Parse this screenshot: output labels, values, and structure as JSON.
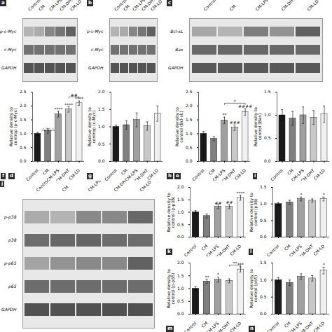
{
  "chart_data": [
    {
      "type": "heatmap",
      "panel": "a",
      "rows": [
        "p-c-Myc",
        "c-Myc",
        "GAPDH"
      ],
      "categories": [
        "Control",
        "CM",
        "CM-LPS",
        "CM-DHT",
        "CM-LD"
      ],
      "values": [
        [
          0.22,
          0.28,
          0.5,
          0.6,
          0.72
        ],
        [
          0.62,
          0.62,
          0.62,
          0.62,
          0.62
        ],
        [
          0.8,
          0.8,
          0.8,
          0.8,
          0.8
        ]
      ],
      "zlim": [
        0,
        1
      ]
    },
    {
      "type": "heatmap",
      "panel": "b",
      "rows": [
        "p-c-Myc",
        "c-Myc",
        "GAPDH"
      ],
      "categories": [
        "Control",
        "CM",
        "CM-LPS",
        "CM-DHT",
        "CM-LD"
      ],
      "values": [
        [
          0.22,
          0.28,
          0.5,
          0.6,
          0.72
        ],
        [
          0.62,
          0.62,
          0.62,
          0.62,
          0.62
        ],
        [
          0.8,
          0.8,
          0.8,
          0.8,
          0.8
        ]
      ],
      "zlim": [
        0,
        1
      ]
    },
    {
      "type": "heatmap",
      "panel": "c",
      "rows": [
        "Bcl-xL",
        "Bax",
        "GAPDH"
      ],
      "categories": [
        "Control",
        "CM",
        "CM-LPS",
        "CM-DHT",
        "CM-LD"
      ],
      "values": [
        [
          0.3,
          0.22,
          0.55,
          0.42,
          0.72
        ],
        [
          0.68,
          0.68,
          0.68,
          0.68,
          0.68
        ],
        [
          0.78,
          0.78,
          0.78,
          0.78,
          0.78
        ]
      ],
      "zlim": [
        0,
        1
      ]
    },
    {
      "type": "bar",
      "panel": "d",
      "categories": [
        "Control",
        "CM",
        "CM-LPS",
        "CM-DHT",
        "CM-LD"
      ],
      "values": [
        1.0,
        1.1,
        1.7,
        1.88,
        2.1
      ],
      "errors": [
        0.05,
        0.08,
        0.1,
        0.1,
        0.08
      ],
      "colors": [
        "#1a1a1a",
        "#808080",
        "#a0a0a0",
        "#c8c8c8",
        "#f0f0f0"
      ],
      "ylabel": "Relative density to\ncontrop (p-c-Myc)",
      "ylim": [
        0,
        2.5
      ],
      "yticks": [
        {
          "value": 0,
          "label": "0.0"
        },
        0.5,
        {
          "value": 1.0,
          "label": "1.0"
        },
        1.5,
        {
          "value": 2.0,
          "label": "2.0"
        },
        2.5
      ],
      "annotations": [
        {
          "x": "CM",
          "y": 1.12,
          "text": "△△△△"
        },
        {
          "x": "CM-LPS",
          "y": 1.82,
          "text": "****"
        },
        {
          "x": "CM-DHT",
          "y": 1.98,
          "text": "****"
        },
        {
          "x": "CM-LD",
          "y": 2.2,
          "text": "****"
        }
      ],
      "brackets": [
        {
          "from": "CM-DHT",
          "to": "CM-LD",
          "y_low": 2.28,
          "y": 2.33,
          "text": "##"
        }
      ]
    },
    {
      "type": "bar",
      "panel": "g",
      "categories": [
        "Control",
        "CM",
        "CM-LPS",
        "CM-DHT",
        "CM-LD"
      ],
      "values": [
        1.0,
        1.05,
        1.2,
        1.02,
        1.38
      ],
      "errors": [
        0.05,
        0.12,
        0.2,
        0.12,
        0.22
      ],
      "colors": [
        "#1a1a1a",
        "#808080",
        "#a0a0a0",
        "#c8c8c8",
        "#f0f0f0"
      ],
      "ylabel": "Relative density to\ncontrop (c-Myc)",
      "ylim": [
        0,
        2.0
      ],
      "yticks": [
        {
          "value": 0,
          "label": "0.0"
        },
        0.5,
        {
          "value": 1.0,
          "label": "1.0"
        },
        1.5,
        {
          "value": 2.0,
          "label": "2.0"
        }
      ]
    },
    {
      "type": "bar",
      "panel": "e",
      "categories": [
        "Control",
        "CM",
        "CM-LPS",
        "CM-DHT",
        "CM-LD"
      ],
      "values": [
        1.0,
        0.82,
        1.48,
        1.22,
        1.78
      ],
      "errors": [
        0.08,
        0.08,
        0.12,
        0.1,
        0.12
      ],
      "colors": [
        "#1a1a1a",
        "#808080",
        "#a0a0a0",
        "#c8c8c8",
        "#f0f0f0"
      ],
      "ylabel": "Relative density to\ncontrol (Bcl-xL)",
      "ylim": [
        0,
        2.5
      ],
      "yticks": [
        {
          "value": 0,
          "label": "0.0"
        },
        0.5,
        {
          "value": 1.0,
          "label": "1.0"
        },
        1.5,
        {
          "value": 2.0,
          "label": "2.0"
        },
        2.5
      ],
      "annotations": [
        {
          "x": "CM-LPS",
          "y": 1.63,
          "text": "**"
        },
        {
          "x": "CM-DHT",
          "y": 1.35,
          "text": "###"
        },
        {
          "x": "CM-LD",
          "y": 1.93,
          "text": "####"
        }
      ],
      "brackets": [
        {
          "from": "CM-LPS",
          "to": "CM-LD",
          "y_low": 2.05,
          "y": 2.1,
          "text": "*"
        }
      ]
    },
    {
      "type": "bar",
      "panel": "i",
      "categories": [
        "Control",
        "CM",
        "CM-LPS",
        "CM-DHT",
        "CM-LD"
      ],
      "values": [
        1.0,
        0.93,
        1.0,
        0.95,
        1.02
      ],
      "errors": [
        0.12,
        0.15,
        0.18,
        0.15,
        0.18
      ],
      "colors": [
        "#1a1a1a",
        "#808080",
        "#a0a0a0",
        "#c8c8c8",
        "#f0f0f0"
      ],
      "ylabel": "Relative density to\ncontrol (Bax)",
      "ylim": [
        0,
        1.5
      ],
      "yticks": [
        {
          "value": 0,
          "label": "0.0"
        },
        0.5,
        {
          "value": 1.0,
          "label": "1.0"
        },
        1.5
      ]
    },
    {
      "type": "heatmap",
      "panel": "j",
      "rows": [
        "p-p38",
        "p38",
        "p-p65",
        "p65",
        "GAPDH"
      ],
      "categories": [
        "Control",
        "CM",
        "CM-LPS",
        "CM-DHT",
        "CM-LD"
      ],
      "values": [
        [
          0.28,
          0.22,
          0.48,
          0.48,
          0.68
        ],
        [
          0.65,
          0.68,
          0.7,
          0.65,
          0.65
        ],
        [
          0.32,
          0.42,
          0.48,
          0.48,
          0.72
        ],
        [
          0.65,
          0.65,
          0.65,
          0.65,
          0.65
        ],
        [
          0.82,
          0.82,
          0.82,
          0.82,
          0.82
        ]
      ],
      "zlim": [
        0,
        1
      ]
    },
    {
      "type": "bar",
      "panel": "k",
      "categories": [
        "Control",
        "CM",
        "CM-LPS",
        "CM-DHT",
        "CM-LD"
      ],
      "values": [
        1.0,
        0.85,
        1.22,
        1.22,
        1.58
      ],
      "errors": [
        0.06,
        0.08,
        0.08,
        0.08,
        0.1
      ],
      "colors": [
        "#1a1a1a",
        "#808080",
        "#a0a0a0",
        "#c8c8c8",
        "#f0f0f0"
      ],
      "ylabel": "Relative density to\ncontrol (p-p38)",
      "ylim": [
        0,
        2.0
      ],
      "yticks": [
        {
          "value": 0,
          "label": "0.0"
        },
        0.5,
        {
          "value": 1.0,
          "label": "1.0"
        },
        1.5,
        {
          "value": 2.0,
          "label": "2.0"
        }
      ],
      "annotations": [
        {
          "x": "CM-LPS",
          "y": 1.32,
          "text": "##"
        },
        {
          "x": "CM-DHT",
          "y": 1.33,
          "text": "##"
        },
        {
          "x": "CM-LD",
          "y": 1.7,
          "text": "****"
        }
      ]
    },
    {
      "type": "bar",
      "panel": "l",
      "categories": [
        "Control",
        "CM",
        "CM-LPS",
        "CM-DHT",
        "CM-LD"
      ],
      "values": [
        1.0,
        1.05,
        1.15,
        1.1,
        1.15
      ],
      "errors": [
        0.04,
        0.06,
        0.06,
        0.05,
        0.06
      ],
      "colors": [
        "#1a1a1a",
        "#808080",
        "#a0a0a0",
        "#c8c8c8",
        "#f0f0f0"
      ],
      "ylabel": "Relative density to\ncontrol (p38)",
      "ylim": [
        0,
        1.5
      ],
      "yticks": [
        {
          "value": 0,
          "label": "0.0"
        },
        0.5,
        {
          "value": 1.0,
          "label": "1.0"
        },
        1.5
      ],
      "annotations": [
        {
          "x": "CM-LPS",
          "y": 1.23,
          "text": "*"
        },
        {
          "x": "CM-LD",
          "y": 1.23,
          "text": "*"
        }
      ]
    },
    {
      "type": "bar",
      "panel": "m",
      "categories": [
        "Control",
        "CM",
        "CM-LPS",
        "CM-DHT",
        "CM-LD"
      ],
      "values": [
        1.0,
        1.28,
        1.35,
        1.3,
        1.75
      ],
      "errors": [
        0.07,
        0.08,
        0.1,
        0.08,
        0.1
      ],
      "colors": [
        "#1a1a1a",
        "#808080",
        "#a0a0a0",
        "#c8c8c8",
        "#f0f0f0"
      ],
      "ylabel": "Relative density to\ncontrol (p-p65)",
      "ylim": [
        0,
        2.0
      ],
      "yticks": [
        {
          "value": 0,
          "label": "0.0"
        },
        0.5,
        {
          "value": 1.0,
          "label": "1.0"
        },
        1.5,
        {
          "value": 2.0,
          "label": "2.0"
        }
      ],
      "annotations": [
        {
          "x": "CM",
          "y": 1.38,
          "text": "**"
        },
        {
          "x": "CM-LPS",
          "y": 1.48,
          "text": "*"
        },
        {
          "x": "CM-LD",
          "y": 1.87,
          "text": "***"
        }
      ],
      "brackets": [
        {
          "from": "CM-DHT",
          "to": "CM-LD",
          "y_low": 1.87,
          "y": 1.92,
          "text": "**"
        }
      ]
    },
    {
      "type": "bar",
      "panel": "n",
      "categories": [
        "Control",
        "CM",
        "CM-LPS",
        "CM-DHT",
        "CM-LD"
      ],
      "values": [
        1.0,
        0.92,
        1.1,
        1.05,
        1.28
      ],
      "errors": [
        0.07,
        0.08,
        0.08,
        0.08,
        0.1
      ],
      "colors": [
        "#1a1a1a",
        "#808080",
        "#a0a0a0",
        "#c8c8c8",
        "#f0f0f0"
      ],
      "ylabel": "Relative density to\ncontrol (p65)",
      "ylim": [
        0,
        1.5
      ],
      "yticks": [
        {
          "value": 0,
          "label": "0.0"
        },
        0.5,
        {
          "value": 1.0,
          "label": "1.0"
        },
        1.5
      ],
      "annotations": [
        {
          "x": "CM-LD",
          "y": 1.4,
          "text": "*"
        }
      ]
    }
  ],
  "panel_labels": [
    "f",
    "h"
  ]
}
